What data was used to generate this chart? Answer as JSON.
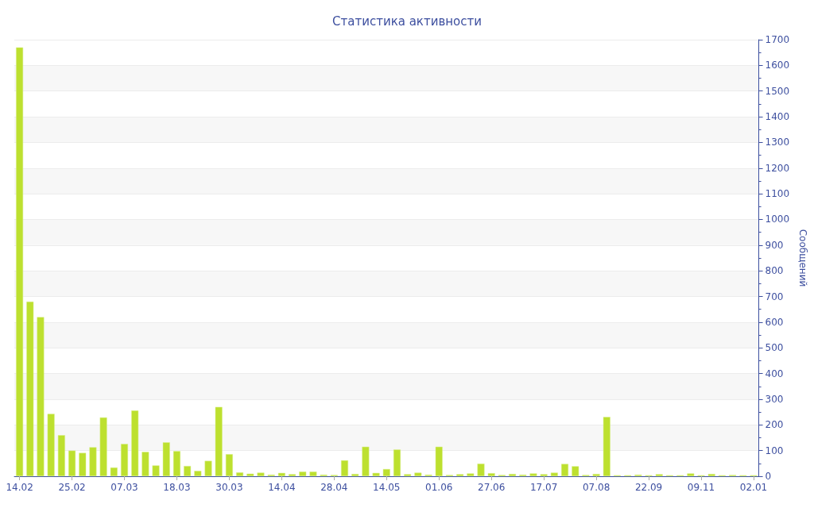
{
  "chart_data": {
    "type": "bar",
    "title": "Статистика активности",
    "y2label": "Сообщений",
    "categories": [
      "14.02",
      null,
      null,
      null,
      null,
      "25.02",
      null,
      null,
      null,
      null,
      "07.03",
      null,
      null,
      null,
      null,
      "18.03",
      null,
      null,
      null,
      null,
      "30.03",
      null,
      null,
      null,
      null,
      "14.04",
      null,
      null,
      null,
      null,
      "28.04",
      null,
      null,
      null,
      null,
      "14.05",
      null,
      null,
      null,
      null,
      "01.06",
      null,
      null,
      null,
      null,
      "27.06",
      null,
      null,
      null,
      null,
      "17.07",
      null,
      null,
      null,
      null,
      "07.08",
      null,
      null,
      null,
      null,
      "22.09",
      null,
      null,
      null,
      null,
      "09.11",
      null,
      null,
      null,
      null,
      "02.01"
    ],
    "series": [
      {
        "axis": "y2",
        "color": "#bde02f",
        "values": [
          1670,
          680,
          620,
          243,
          160,
          100,
          91,
          113,
          229,
          34,
          126,
          256,
          95,
          42,
          132,
          98,
          40,
          21,
          60,
          270,
          86,
          15,
          10,
          14,
          6,
          13,
          8,
          18,
          18,
          6,
          5,
          62,
          9,
          115,
          13,
          28,
          104,
          8,
          14,
          6,
          115,
          5,
          8,
          11,
          49,
          12,
          5,
          9,
          6,
          11,
          8,
          14,
          48,
          39,
          5,
          9,
          231,
          4,
          4,
          6,
          4,
          8,
          4,
          4,
          11,
          4,
          9,
          4,
          5,
          4,
          4
        ]
      }
    ],
    "y2lim": [
      0,
      1700
    ],
    "y2ticks": [
      0,
      100,
      200,
      300,
      400,
      500,
      600,
      700,
      800,
      900,
      1000,
      1100,
      1200,
      1300,
      1400,
      1500,
      1600,
      1700
    ],
    "grid": "y"
  }
}
